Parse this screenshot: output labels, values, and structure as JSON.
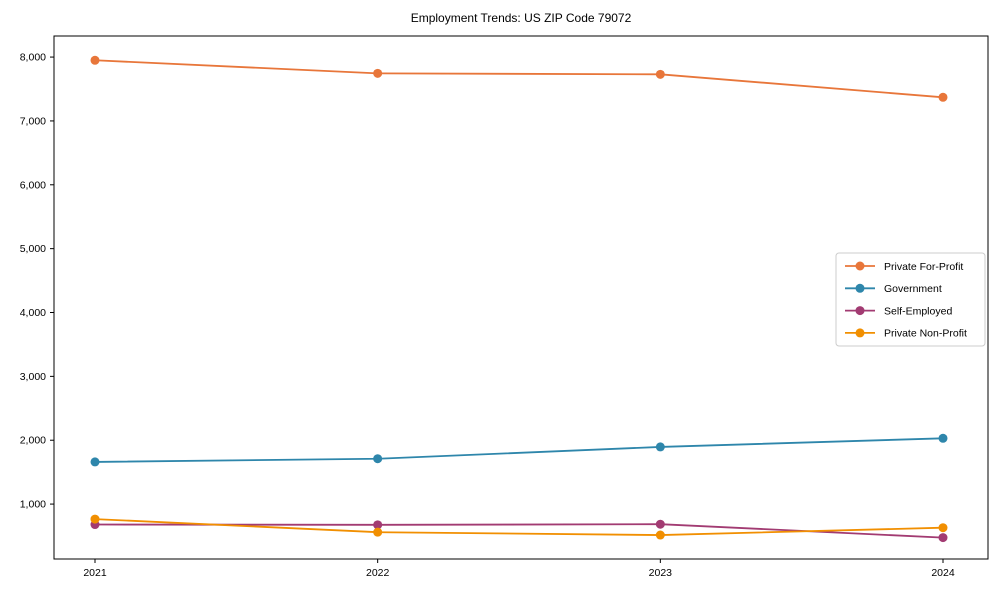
{
  "chart_data": {
    "type": "line",
    "title": "Employment Trends: US ZIP Code 79072",
    "xlabel": "",
    "ylabel": "",
    "categories": [
      "2021",
      "2022",
      "2023",
      "2024"
    ],
    "series": [
      {
        "name": "Private For-Profit",
        "color": "#E8763A",
        "values": [
          7950,
          7745,
          7730,
          7370
        ]
      },
      {
        "name": "Government",
        "color": "#2E86AB",
        "values": [
          1660,
          1710,
          1895,
          2030
        ]
      },
      {
        "name": "Self-Employed",
        "color": "#A23B72",
        "values": [
          680,
          675,
          685,
          475
        ]
      },
      {
        "name": "Private Non-Profit",
        "color": "#F18F01",
        "values": [
          765,
          560,
          515,
          630
        ]
      }
    ],
    "yticks": [
      1000,
      2000,
      3000,
      4000,
      5000,
      6000,
      7000,
      8000
    ],
    "ytick_labels": [
      "1,000",
      "2,000",
      "3,000",
      "4,000",
      "5,000",
      "6,000",
      "7,000",
      "8,000"
    ],
    "ylim": [
      140,
      8330
    ],
    "grid": false,
    "legend_position": "center right",
    "axis_color": "#000000",
    "text_color": "#000000",
    "legend_border_color": "#cccccc"
  }
}
